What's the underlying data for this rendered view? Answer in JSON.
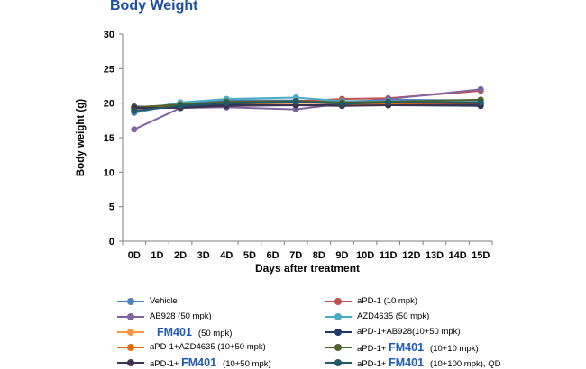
{
  "chart_data": {
    "type": "line",
    "title": "Body Weight",
    "xlabel": "Days after treatment",
    "ylabel": "Body weight (g)",
    "categories": [
      "0D",
      "1D",
      "2D",
      "3D",
      "4D",
      "5D",
      "6D",
      "7D",
      "8D",
      "9D",
      "10D",
      "11D",
      "12D",
      "13D",
      "14D",
      "15D"
    ],
    "ylim": [
      0,
      30
    ],
    "yticks": [
      "0",
      "5",
      "10",
      "15",
      "20",
      "25",
      "30"
    ],
    "grid": false,
    "legend_position": "bottom",
    "series": [
      {
        "name": "Vehicle",
        "color": "#4f81bd",
        "x": [
          0,
          2,
          4,
          7,
          9,
          11,
          15
        ],
        "values": [
          18.6,
          19.9,
          20.4,
          20.4,
          20.2,
          20.5,
          20.4
        ]
      },
      {
        "name": "aPD-1 (10 mpk)",
        "color": "#c0504d",
        "x": [
          0,
          2,
          4,
          7,
          9,
          11,
          15
        ],
        "values": [
          19.2,
          19.8,
          20.2,
          20.3,
          20.6,
          20.7,
          21.8
        ]
      },
      {
        "name": "AB928 (50 mpk)",
        "color": "#8064a2",
        "x": [
          0,
          2,
          4,
          7,
          9,
          11,
          15
        ],
        "values": [
          16.2,
          19.3,
          19.4,
          19.1,
          19.9,
          20.6,
          22.0
        ]
      },
      {
        "name": "AZD4635 (50 mpk)",
        "color": "#4bacc6",
        "x": [
          0,
          2,
          4,
          7,
          9,
          11,
          15
        ],
        "values": [
          18.9,
          20.1,
          20.6,
          20.8,
          20.3,
          20.3,
          20.2
        ]
      },
      {
        "name": "FM401",
        "color": "#f79646",
        "x": [
          0,
          2,
          4,
          7,
          9,
          11,
          15
        ],
        "values": [
          19.1,
          19.6,
          19.9,
          20.0,
          20.1,
          19.9,
          20.0
        ]
      },
      {
        "name": "aPD-1+AB928(10+50 mpk)",
        "color": "#1f3864",
        "x": [
          0,
          2,
          4,
          7,
          9,
          11,
          15
        ],
        "values": [
          19.5,
          19.5,
          19.8,
          19.7,
          19.7,
          19.7,
          19.6
        ]
      },
      {
        "name": "aPD-1+AZD4635 (10+50 mpk)",
        "color": "#e46c0a",
        "x": [
          0,
          2,
          4,
          7,
          9,
          11,
          15
        ],
        "values": [
          19.3,
          19.7,
          20.0,
          20.1,
          19.9,
          19.9,
          20.0
        ]
      },
      {
        "name": "aPD-1+ FM401 (10+10 mpk)",
        "color": "#4f6228",
        "x": [
          0,
          2,
          4,
          7,
          9,
          11,
          15
        ],
        "values": [
          19.4,
          19.8,
          20.2,
          20.3,
          20.1,
          20.2,
          20.5
        ]
      },
      {
        "name": "aPD-1+ FM401 (10+50 mpk)",
        "color": "#403151",
        "x": [
          0,
          2,
          4,
          7,
          9,
          11,
          15
        ],
        "values": [
          19.3,
          19.3,
          19.6,
          19.7,
          19.6,
          19.7,
          19.8
        ]
      },
      {
        "name": "aPD-1+ FM401 (10+100 mpk), QD",
        "color": "#215967",
        "x": [
          0,
          2,
          4,
          7,
          9,
          11,
          15
        ],
        "values": [
          18.9,
          19.6,
          20.0,
          20.2,
          19.9,
          20.1,
          20.1
        ]
      }
    ]
  },
  "legend": [
    {
      "pre": "",
      "brand": "",
      "post": "Vehicle",
      "color": "#4f81bd"
    },
    {
      "pre": "",
      "brand": "",
      "post": "aPD-1 (10 mpk)",
      "color": "#c0504d"
    },
    {
      "pre": "",
      "brand": "",
      "post": "AB928 (50 mpk)",
      "color": "#8064a2"
    },
    {
      "pre": "",
      "brand": "",
      "post": "AZD4635 (50 mpk)",
      "color": "#4bacc6"
    },
    {
      "pre": "",
      "brand": "FM401",
      "post": "(50 mpk)",
      "color": "#f79646"
    },
    {
      "pre": "",
      "brand": "",
      "post": "aPD-1+AB928(10+50 mpk)",
      "color": "#1f3864"
    },
    {
      "pre": "",
      "brand": "",
      "post": "aPD-1+AZD4635 (10+50 mpk)",
      "color": "#e46c0a"
    },
    {
      "pre": "aPD-1+ ",
      "brand": "FM401",
      "post": "(10+10 mpk)",
      "color": "#4f6228"
    },
    {
      "pre": "aPD-1+ ",
      "brand": "FM401",
      "post": "(10+50 mpk)",
      "color": "#403151"
    },
    {
      "pre": "aPD-1+ ",
      "brand": "FM401",
      "post": "(10+100 mpk), QD",
      "color": "#215967"
    }
  ]
}
